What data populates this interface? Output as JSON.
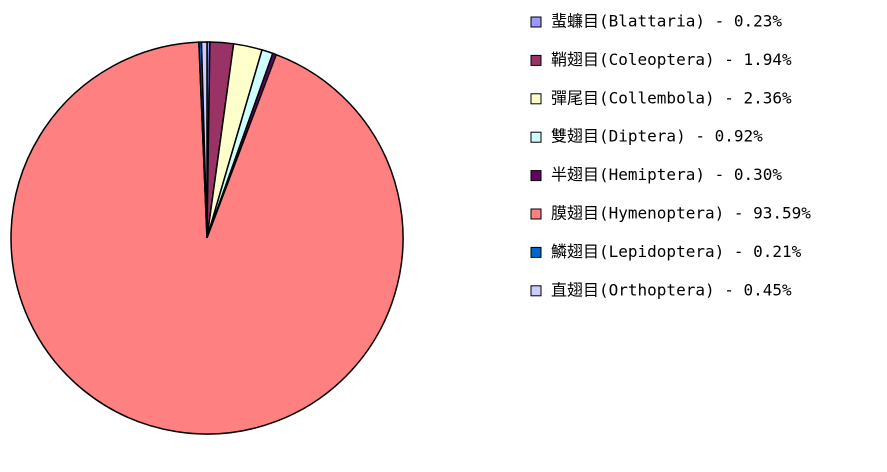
{
  "chart_data": {
    "type": "pie",
    "categories": [
      "蜚蠊目(Blattaria) - 0.23%",
      "鞘翅目(Coleoptera) - 1.94%",
      "彈尾目(Collembola) - 2.36%",
      "雙翅目(Diptera) - 0.92%",
      "半翅目(Hemiptera) - 0.30%",
      "膜翅目(Hymenoptera) - 93.59%",
      "鱗翅目(Lepidoptera) - 0.21%",
      "直翅目(Orthoptera) - 0.45%"
    ],
    "values": [
      0.23,
      1.94,
      2.36,
      0.92,
      0.3,
      93.59,
      0.21,
      0.45
    ],
    "colors": [
      "#9999ff",
      "#993366",
      "#ffffcc",
      "#ccffff",
      "#660066",
      "#ff8080",
      "#0066cc",
      "#ccccff"
    ],
    "legend": "right"
  }
}
